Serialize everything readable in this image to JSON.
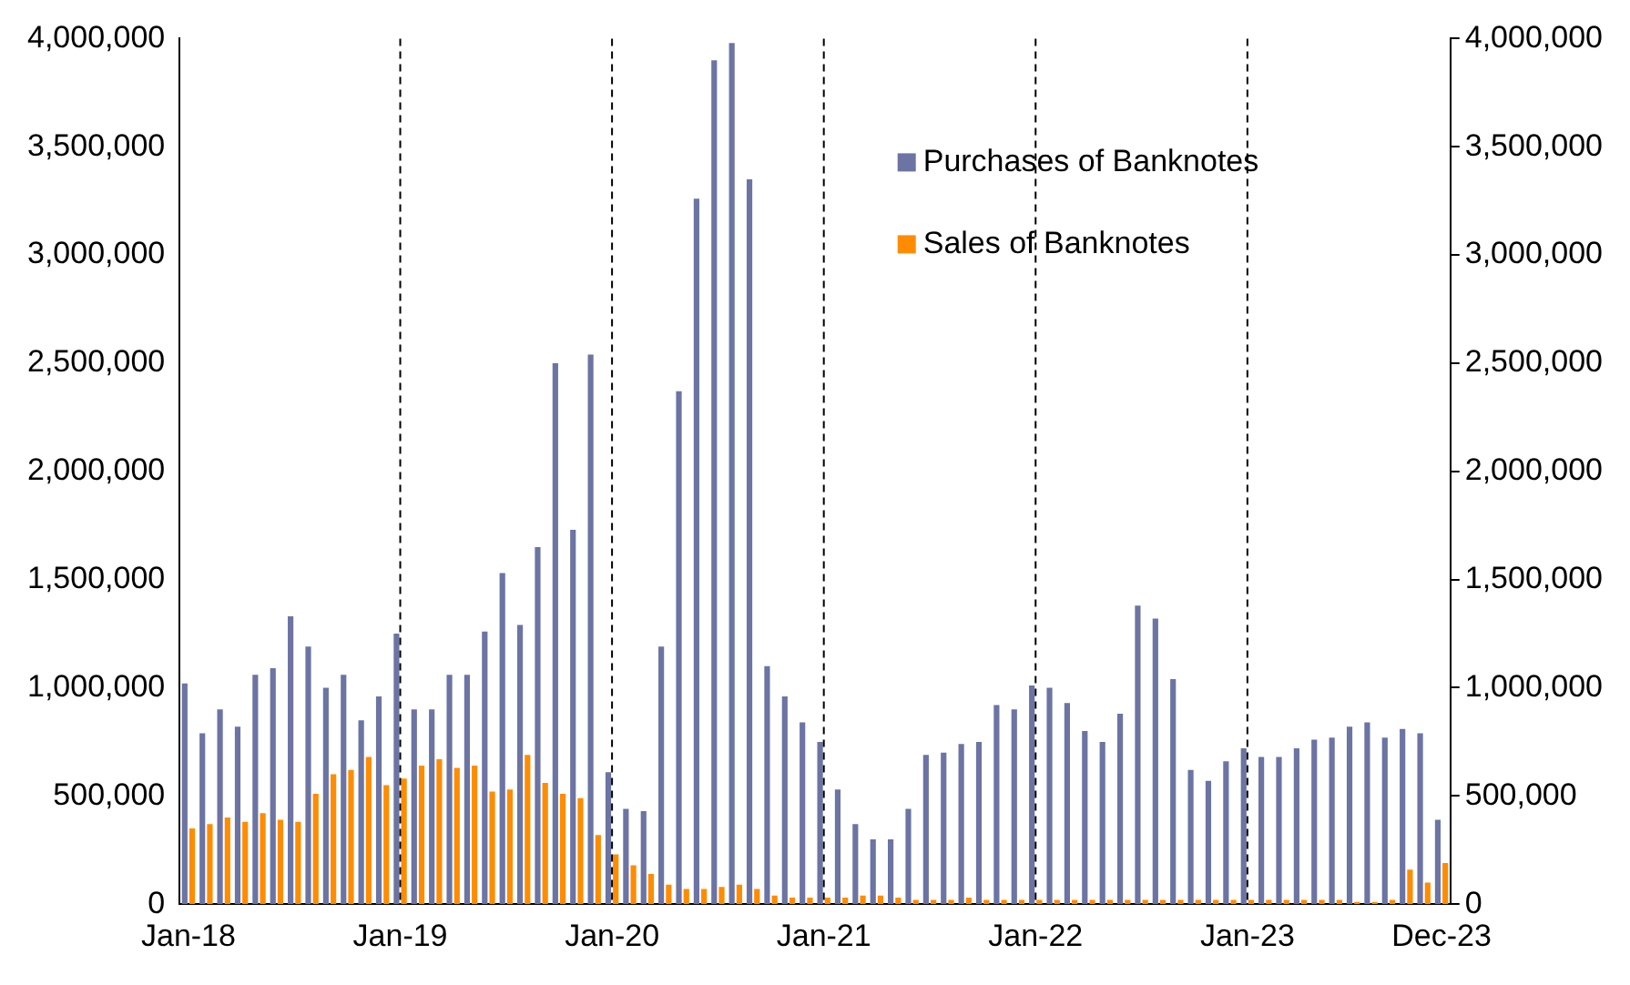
{
  "chart_data": {
    "type": "bar",
    "categories": [
      "Jan-18",
      null,
      null,
      null,
      null,
      null,
      null,
      null,
      null,
      null,
      null,
      null,
      "Jan-19",
      null,
      null,
      null,
      null,
      null,
      null,
      null,
      null,
      null,
      null,
      null,
      "Jan-20",
      null,
      null,
      null,
      null,
      null,
      null,
      null,
      null,
      null,
      null,
      null,
      "Jan-21",
      null,
      null,
      null,
      null,
      null,
      null,
      null,
      null,
      null,
      null,
      null,
      "Jan-22",
      null,
      null,
      null,
      null,
      null,
      null,
      null,
      null,
      null,
      null,
      null,
      "Jan-23",
      null,
      null,
      null,
      null,
      null,
      null,
      null,
      null,
      null,
      null,
      "Dec-23"
    ],
    "series": [
      {
        "name": "Purchases of Banknotes",
        "color": "#6b74a3",
        "values": [
          1020000,
          790000,
          900000,
          820000,
          1060000,
          1090000,
          1330000,
          1190000,
          1000000,
          1060000,
          850000,
          960000,
          1250000,
          900000,
          900000,
          1060000,
          1060000,
          1260000,
          1530000,
          1290000,
          1650000,
          2500000,
          1730000,
          2540000,
          610000,
          440000,
          430000,
          1190000,
          2370000,
          3260000,
          3900000,
          3980000,
          3350000,
          1100000,
          960000,
          840000,
          750000,
          530000,
          370000,
          300000,
          300000,
          440000,
          690000,
          700000,
          740000,
          750000,
          920000,
          900000,
          1010000,
          1000000,
          930000,
          800000,
          750000,
          880000,
          1380000,
          1320000,
          1040000,
          620000,
          570000,
          660000,
          720000,
          680000,
          680000,
          720000,
          760000,
          770000,
          820000,
          840000,
          770000,
          810000,
          790000,
          390000
        ]
      },
      {
        "name": "Sales of Banknotes",
        "color": "#ff8c00",
        "values": [
          350000,
          370000,
          400000,
          380000,
          420000,
          390000,
          380000,
          510000,
          600000,
          620000,
          680000,
          550000,
          580000,
          640000,
          670000,
          630000,
          640000,
          520000,
          530000,
          690000,
          560000,
          510000,
          490000,
          320000,
          230000,
          180000,
          140000,
          90000,
          70000,
          70000,
          80000,
          90000,
          70000,
          40000,
          30000,
          30000,
          30000,
          30000,
          40000,
          40000,
          30000,
          20000,
          20000,
          20000,
          30000,
          20000,
          20000,
          20000,
          20000,
          20000,
          20000,
          20000,
          20000,
          20000,
          20000,
          20000,
          20000,
          20000,
          20000,
          20000,
          20000,
          20000,
          20000,
          20000,
          20000,
          20000,
          10000,
          10000,
          20000,
          160000,
          100000,
          190000
        ]
      }
    ],
    "ylim": [
      0,
      4000000
    ],
    "yticks": [
      0,
      {
        "value": 500000,
        "label": "500,000"
      },
      {
        "value": 1000000,
        "label": "1,000,000"
      },
      {
        "value": 1500000,
        "label": "1,500,000"
      },
      {
        "value": 2000000,
        "label": "2,000,000"
      },
      {
        "value": 2500000,
        "label": "2,500,000"
      },
      {
        "value": 3000000,
        "label": "3,000,000"
      },
      {
        "value": 3500000,
        "label": "3,500,000"
      },
      {
        "value": 4000000,
        "label": "4,000,000"
      }
    ],
    "y2lim": [
      0,
      4000000
    ],
    "y2ticks": [
      0,
      {
        "value": 500000,
        "label": "500,000"
      },
      {
        "value": 1000000,
        "label": "1,000,000"
      },
      {
        "value": 1500000,
        "label": "1,500,000"
      },
      {
        "value": 2000000,
        "label": "2,000,000"
      },
      {
        "value": 2500000,
        "label": "2,500,000"
      },
      {
        "value": 3000000,
        "label": "3,000,000"
      },
      {
        "value": 3500000,
        "label": "3,500,000"
      },
      {
        "value": 4000000,
        "label": "4,000,000"
      }
    ],
    "ref_lines": [
      {
        "axis": "x",
        "value": "Jan-19",
        "color": "#000000",
        "line_style": "dashed"
      },
      {
        "axis": "x",
        "value": "Jan-20",
        "color": "#000000",
        "line_style": "dashed"
      },
      {
        "axis": "x",
        "value": "Jan-21",
        "color": "#000000",
        "line_style": "dashed"
      },
      {
        "axis": "x",
        "value": "Jan-22",
        "color": "#000000",
        "line_style": "dashed"
      },
      {
        "axis": "x",
        "value": "Jan-23",
        "color": "#000000",
        "line_style": "dashed"
      }
    ],
    "grid": false,
    "legend": "top right"
  }
}
